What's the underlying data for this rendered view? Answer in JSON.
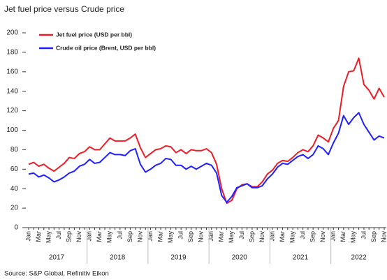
{
  "chart_data": {
    "type": "line",
    "title": "Jet fuel price versus Crude price",
    "source": "Source: S&P Global, Refinitiv Eikon",
    "categories": [
      "Jan",
      null,
      "Mar",
      null,
      "May",
      null,
      "Jul",
      null,
      "Sep",
      null,
      "Nov",
      null,
      "Jan",
      null,
      "Mar",
      null,
      "May",
      null,
      "Jul",
      null,
      "Sep",
      null,
      "Nov",
      null,
      "Jan",
      null,
      "Mar",
      null,
      "May",
      null,
      "Jul",
      null,
      "Sep",
      null,
      "Nov",
      null,
      "Jan",
      null,
      "Mar",
      null,
      "May",
      null,
      "Jul",
      null,
      "Sep",
      null,
      "Nov",
      null,
      "Jan",
      null,
      "Mar",
      null,
      "May",
      null,
      "Jul",
      null,
      "Sep",
      null,
      "Nov",
      null,
      "Jan",
      null,
      "Mar",
      null,
      "May",
      null,
      "Jul",
      null,
      "Sep",
      null,
      "Nov"
    ],
    "years": [
      "2017",
      "2018",
      "2019",
      "2020",
      "2021",
      "2022"
    ],
    "series": [
      {
        "name": "Jet fuel price (USD per bbl)",
        "color": "#ee1c25",
        "values": [
          65,
          67,
          63,
          65,
          61,
          58,
          62,
          66,
          72,
          71,
          76,
          78,
          83,
          80,
          80,
          86,
          92,
          89,
          89,
          89,
          92,
          96,
          82,
          72,
          76,
          80,
          81,
          84,
          83,
          77,
          80,
          76,
          80,
          79,
          79,
          81,
          77,
          65,
          40,
          25,
          28,
          40,
          44,
          45,
          42,
          42,
          47,
          55,
          59,
          66,
          69,
          68,
          72,
          77,
          80,
          78,
          84,
          95,
          92,
          88,
          102,
          110,
          145,
          160,
          161,
          174,
          147,
          141,
          132,
          143,
          134
        ]
      },
      {
        "name": "Crude oil price (Brent, USD per bbl)",
        "color": "#1f1fff",
        "values": [
          55,
          56,
          52,
          54,
          51,
          47,
          49,
          52,
          56,
          58,
          63,
          65,
          70,
          66,
          67,
          72,
          77,
          75,
          75,
          74,
          79,
          81,
          65,
          57,
          60,
          64,
          66,
          71,
          70,
          64,
          64,
          60,
          63,
          60,
          63,
          66,
          64,
          56,
          33,
          26,
          32,
          41,
          43,
          45,
          41,
          41,
          43,
          50,
          55,
          62,
          66,
          65,
          69,
          73,
          75,
          71,
          75,
          84,
          81,
          75,
          87,
          97,
          115,
          106,
          113,
          118,
          106,
          98,
          90,
          94,
          92
        ]
      }
    ],
    "ylim": [
      0,
      200
    ],
    "yticks": [
      0,
      20,
      40,
      60,
      80,
      100,
      120,
      140,
      160,
      180,
      200
    ],
    "grid": false,
    "legend": "top-left"
  }
}
